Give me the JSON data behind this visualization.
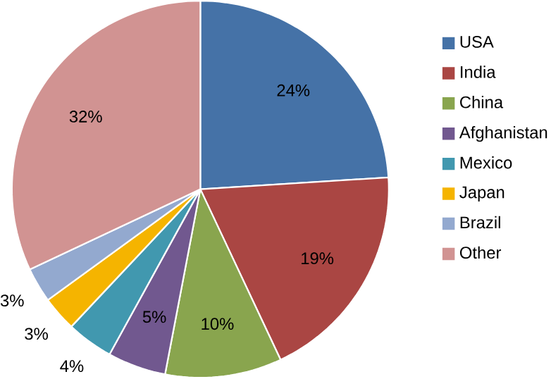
{
  "chart_data": {
    "type": "pie",
    "categories": [
      "USA",
      "India",
      "China",
      "Afghanistan",
      "Mexico",
      "Japan",
      "Brazil",
      "Other"
    ],
    "values": [
      24,
      19,
      10,
      5,
      4,
      3,
      3,
      32
    ],
    "colors": [
      "#4572a7",
      "#aa4643",
      "#89a54e",
      "#71588f",
      "#4198af",
      "#f5b400",
      "#93a9cf",
      "#d19392"
    ],
    "value_labels": [
      "24%",
      "19%",
      "10%",
      "5%",
      "4%",
      "3%",
      "3%",
      "32%"
    ],
    "legend": "right"
  }
}
